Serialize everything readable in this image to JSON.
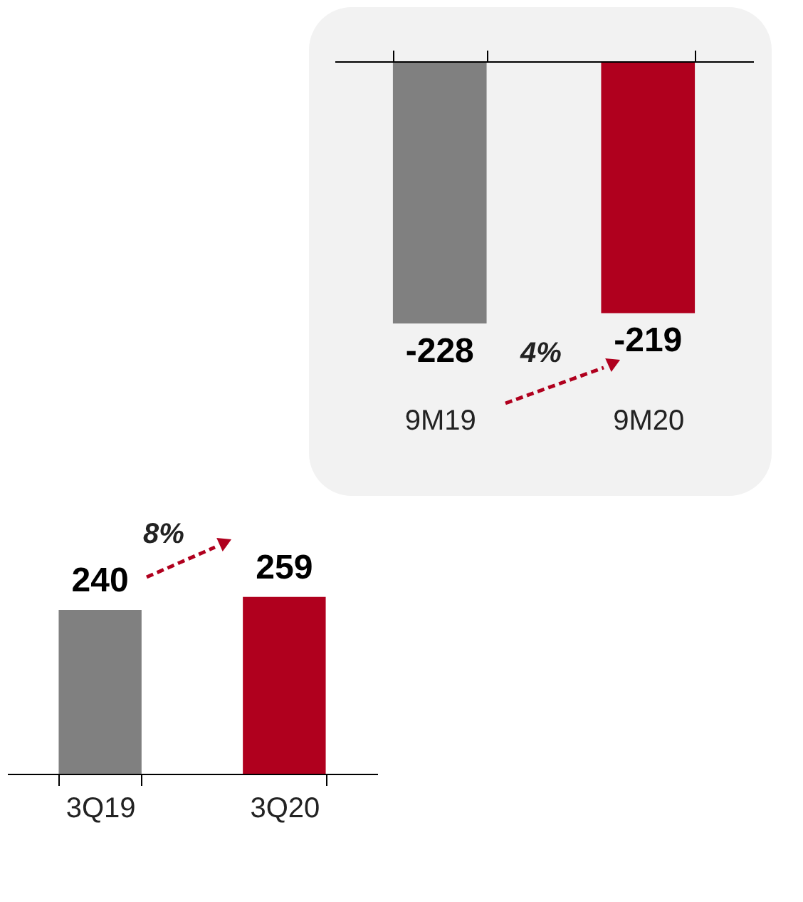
{
  "chart_data": [
    {
      "type": "bar",
      "categories": [
        "9M19",
        "9M20"
      ],
      "values": [
        -228,
        -219
      ],
      "colors": [
        "#808080",
        "#b0001e"
      ],
      "data_labels": true,
      "tick_labels": "x",
      "annotations": [
        "4%"
      ]
    },
    {
      "type": "bar",
      "categories": [
        "3Q19",
        "3Q20"
      ],
      "values": [
        240,
        259
      ],
      "colors": [
        "#808080",
        "#b0001e"
      ],
      "data_labels": true,
      "tick_labels": "x",
      "annotations": [
        "8%"
      ]
    }
  ]
}
